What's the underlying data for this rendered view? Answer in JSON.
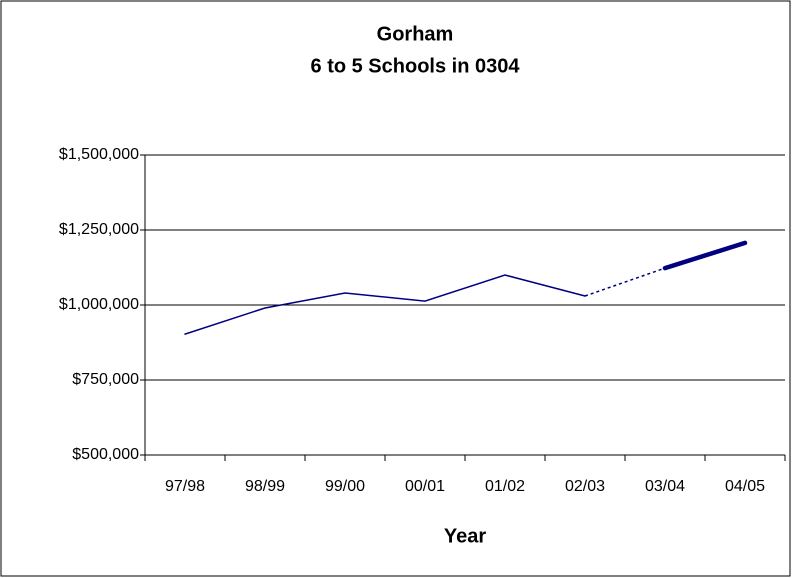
{
  "chart_data": {
    "type": "line",
    "title": "Gorham",
    "subtitle": "6 to 5 Schools in 0304",
    "x_label": "Year",
    "categories": [
      "97/98",
      "98/99",
      "99/00",
      "00/01",
      "01/02",
      "02/03",
      "03/04",
      "04/05"
    ],
    "series": [
      {
        "color": "#000080",
        "style": "solid",
        "values": [
          903000,
          990000,
          1040000,
          1013000,
          1100000,
          1030000,
          null,
          null
        ]
      },
      {
        "color": "#000080",
        "style": "dashed",
        "values": [
          null,
          null,
          null,
          null,
          null,
          1030000,
          1123000,
          null
        ]
      },
      {
        "color": "#000080",
        "style": "thick",
        "values": [
          null,
          null,
          null,
          null,
          null,
          null,
          1123000,
          1207000
        ]
      }
    ],
    "ylim": [
      500000,
      1500000
    ],
    "yticks": [
      {
        "value": 500000,
        "label": "$500,000"
      },
      {
        "value": 750000,
        "label": "$750,000"
      },
      {
        "value": 1000000,
        "label": "$1,000,000"
      },
      {
        "value": 1250000,
        "label": "$1,250,000"
      },
      {
        "value": 1500000,
        "label": "$1,500,000"
      }
    ],
    "grid": true
  }
}
